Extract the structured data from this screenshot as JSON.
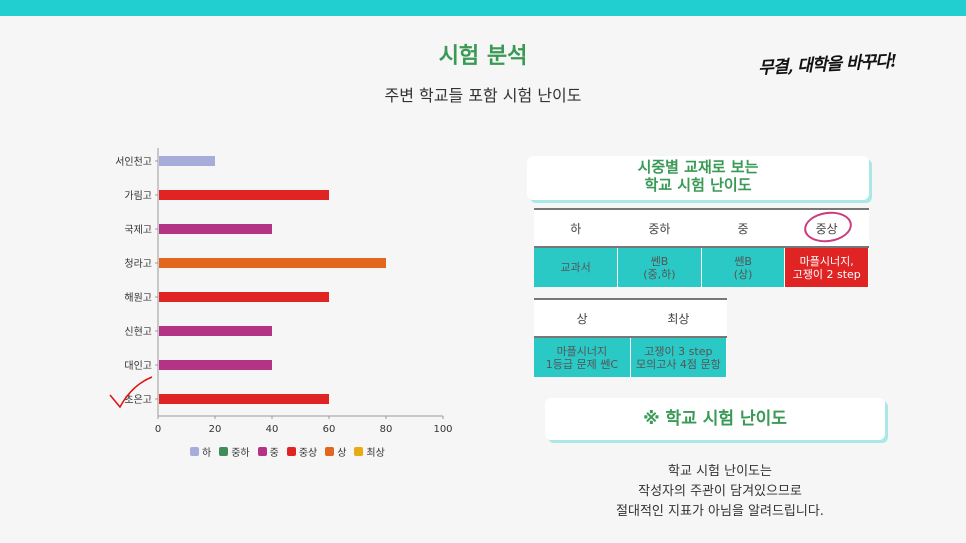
{
  "title": "시험 분석",
  "subtitle": "주변 학교들 포함 시험 난이도",
  "brand": "무결, 대학을 바꾸다!",
  "colors": {
    "accent_bar": "#22cfd0",
    "title_green": "#3a9a55",
    "table_teal": "#2ac9c6",
    "highlight_red": "#e02424"
  },
  "chart_data": {
    "type": "bar",
    "orientation": "horizontal",
    "categories": [
      "서인천고",
      "가림고",
      "국제고",
      "청라고",
      "해원고",
      "신현고",
      "대인고",
      "초은고"
    ],
    "values": [
      20,
      60,
      40,
      80,
      60,
      40,
      40,
      60
    ],
    "level": [
      "하",
      "중상",
      "중",
      "상",
      "중상",
      "중",
      "중",
      "중상"
    ],
    "xlim": [
      0,
      100
    ],
    "xticks": [
      0,
      20,
      40,
      60,
      80,
      100
    ],
    "legend": [
      {
        "name": "하",
        "color": "#a6addb"
      },
      {
        "name": "중하",
        "color": "#3f8e5a"
      },
      {
        "name": "중",
        "color": "#b53384"
      },
      {
        "name": "중상",
        "color": "#e02424"
      },
      {
        "name": "상",
        "color": "#e2661e"
      },
      {
        "name": "최상",
        "color": "#e9ab12"
      }
    ],
    "legend_position": "bottom"
  },
  "panel": {
    "heading_line1": "시중별 교재로 보는",
    "heading_line2": "학교 시험 난이도",
    "table1": {
      "headers": [
        "하",
        "중하",
        "중",
        "중상"
      ],
      "values": [
        [
          "교과서"
        ],
        [
          "쎈B",
          "(중,하)"
        ],
        [
          "쎈B",
          "(상)"
        ],
        [
          "마플시너지,",
          "고쟁이 2 step"
        ]
      ]
    },
    "table2": {
      "headers": [
        "상",
        "최상"
      ],
      "values": [
        [
          "마플시너지",
          "1등급 문제 쎈C"
        ],
        [
          "고쟁이 3 step",
          "모의고사 4점 문항"
        ]
      ]
    },
    "difficulty_heading": "※ 학교 시험 난이도",
    "note_lines": [
      "학교 시험 난이도는",
      "작성자의 주관이 담겨있으므로",
      "절대적인 지표가 아님을 알려드립니다."
    ]
  }
}
